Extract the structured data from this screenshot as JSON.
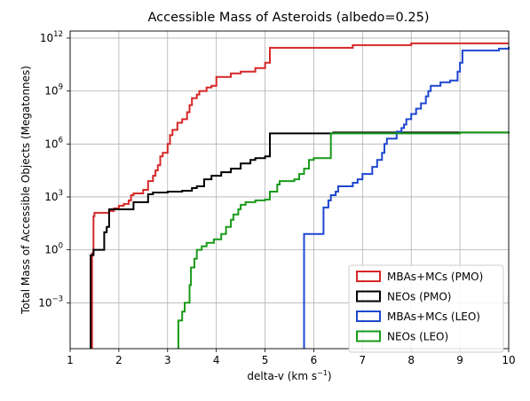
{
  "chart_data": {
    "type": "line",
    "step": "post",
    "title": "Accessible Mass of Asteroids (albedo=0.25)",
    "xlabel": "delta-v (km s",
    "xlabel_exponent": "−1",
    "xlabel_suffix": ")",
    "ylabel": "Total Mass of Accessible Objects (Megatonnes)",
    "xlim": [
      1,
      10
    ],
    "ylim_log10": [
      -5.6,
      12.4
    ],
    "yscale": "log",
    "grid": true,
    "legend_position": "lower-right",
    "x_ticks": [
      "1",
      "2",
      "3",
      "4",
      "5",
      "6",
      "7",
      "8",
      "9",
      "10"
    ],
    "y_ticks": [
      {
        "base": "10",
        "exp": "12",
        "log10": 12
      },
      {
        "base": "10",
        "exp": "9",
        "log10": 9
      },
      {
        "base": "10",
        "exp": "6",
        "log10": 6
      },
      {
        "base": "10",
        "exp": "3",
        "log10": 3
      },
      {
        "base": "10",
        "exp": "0",
        "log10": 0
      },
      {
        "base": "10",
        "exp": "−3",
        "log10": -3
      }
    ],
    "series": [
      {
        "name": "MBAs+MCs (PMO)",
        "color": "#d62728",
        "points": [
          [
            1.45,
            -5.6
          ],
          [
            1.45,
            -0.2
          ],
          [
            1.48,
            1.9
          ],
          [
            1.5,
            2.1
          ],
          [
            1.8,
            2.2
          ],
          [
            1.9,
            2.35
          ],
          [
            2.0,
            2.5
          ],
          [
            2.1,
            2.6
          ],
          [
            2.2,
            2.8
          ],
          [
            2.25,
            3.1
          ],
          [
            2.3,
            3.2
          ],
          [
            2.5,
            3.4
          ],
          [
            2.6,
            3.9
          ],
          [
            2.7,
            4.2
          ],
          [
            2.75,
            4.5
          ],
          [
            2.8,
            4.8
          ],
          [
            2.85,
            5.3
          ],
          [
            2.9,
            5.5
          ],
          [
            3.0,
            6.0
          ],
          [
            3.05,
            6.5
          ],
          [
            3.1,
            6.8
          ],
          [
            3.2,
            7.2
          ],
          [
            3.3,
            7.4
          ],
          [
            3.4,
            7.8
          ],
          [
            3.45,
            8.2
          ],
          [
            3.5,
            8.6
          ],
          [
            3.6,
            8.8
          ],
          [
            3.65,
            9.0
          ],
          [
            3.8,
            9.2
          ],
          [
            3.9,
            9.3
          ],
          [
            4.0,
            9.8
          ],
          [
            4.3,
            10.0
          ],
          [
            4.5,
            10.1
          ],
          [
            4.8,
            10.3
          ],
          [
            5.0,
            10.6
          ],
          [
            5.1,
            11.45
          ],
          [
            6.8,
            11.6
          ],
          [
            8.0,
            11.7
          ],
          [
            10.0,
            11.7
          ]
        ]
      },
      {
        "name": "NEOs (PMO)",
        "color": "#000000",
        "points": [
          [
            1.42,
            -5.6
          ],
          [
            1.42,
            -0.3
          ],
          [
            1.48,
            0.0
          ],
          [
            1.65,
            0.0
          ],
          [
            1.7,
            1.0
          ],
          [
            1.75,
            1.3
          ],
          [
            1.8,
            2.3
          ],
          [
            1.9,
            2.3
          ],
          [
            2.25,
            2.3
          ],
          [
            2.3,
            2.7
          ],
          [
            2.5,
            2.7
          ],
          [
            2.6,
            3.15
          ],
          [
            2.7,
            3.25
          ],
          [
            3.0,
            3.3
          ],
          [
            3.3,
            3.35
          ],
          [
            3.5,
            3.5
          ],
          [
            3.6,
            3.6
          ],
          [
            3.75,
            4.0
          ],
          [
            3.9,
            4.2
          ],
          [
            4.1,
            4.4
          ],
          [
            4.3,
            4.6
          ],
          [
            4.5,
            4.9
          ],
          [
            4.7,
            5.1
          ],
          [
            4.8,
            5.2
          ],
          [
            5.0,
            5.3
          ],
          [
            5.1,
            6.6
          ],
          [
            6.4,
            6.65
          ],
          [
            10.0,
            6.65
          ]
        ]
      },
      {
        "name": "MBAs+MCs (LEO)",
        "color": "#1f46d0",
        "points": [
          [
            5.8,
            -5.6
          ],
          [
            5.8,
            0.9
          ],
          [
            6.15,
            0.9
          ],
          [
            6.2,
            2.4
          ],
          [
            6.3,
            2.8
          ],
          [
            6.35,
            3.1
          ],
          [
            6.45,
            3.3
          ],
          [
            6.5,
            3.6
          ],
          [
            6.7,
            3.6
          ],
          [
            6.8,
            3.8
          ],
          [
            6.9,
            4.0
          ],
          [
            7.0,
            4.3
          ],
          [
            7.2,
            4.7
          ],
          [
            7.3,
            5.1
          ],
          [
            7.4,
            5.5
          ],
          [
            7.45,
            6.0
          ],
          [
            7.5,
            6.3
          ],
          [
            7.7,
            6.7
          ],
          [
            7.8,
            6.9
          ],
          [
            7.85,
            7.1
          ],
          [
            7.9,
            7.4
          ],
          [
            8.0,
            7.7
          ],
          [
            8.1,
            8.0
          ],
          [
            8.2,
            8.3
          ],
          [
            8.3,
            8.7
          ],
          [
            8.35,
            9.0
          ],
          [
            8.4,
            9.3
          ],
          [
            8.6,
            9.5
          ],
          [
            8.8,
            9.6
          ],
          [
            8.95,
            10.1
          ],
          [
            9.0,
            10.6
          ],
          [
            9.05,
            11.3
          ],
          [
            9.8,
            11.4
          ],
          [
            10.0,
            11.5
          ]
        ]
      },
      {
        "name": "NEOs (LEO)",
        "color": "#1a9a1a",
        "points": [
          [
            3.22,
            -5.6
          ],
          [
            3.22,
            -4.0
          ],
          [
            3.3,
            -3.5
          ],
          [
            3.35,
            -3.0
          ],
          [
            3.45,
            -2.0
          ],
          [
            3.48,
            -1.0
          ],
          [
            3.5,
            -1.0
          ],
          [
            3.55,
            -0.5
          ],
          [
            3.6,
            0.0
          ],
          [
            3.7,
            0.2
          ],
          [
            3.8,
            0.4
          ],
          [
            3.95,
            0.6
          ],
          [
            4.1,
            0.9
          ],
          [
            4.2,
            1.3
          ],
          [
            4.3,
            1.7
          ],
          [
            4.35,
            2.0
          ],
          [
            4.45,
            2.3
          ],
          [
            4.5,
            2.55
          ],
          [
            4.6,
            2.7
          ],
          [
            4.8,
            2.8
          ],
          [
            5.0,
            2.85
          ],
          [
            5.1,
            3.3
          ],
          [
            5.25,
            3.7
          ],
          [
            5.3,
            3.9
          ],
          [
            5.6,
            4.0
          ],
          [
            5.7,
            4.3
          ],
          [
            5.8,
            4.6
          ],
          [
            5.9,
            5.1
          ],
          [
            6.0,
            5.2
          ],
          [
            6.3,
            5.2
          ],
          [
            6.35,
            6.6
          ],
          [
            9.0,
            6.65
          ],
          [
            10.0,
            6.7
          ]
        ]
      }
    ]
  }
}
